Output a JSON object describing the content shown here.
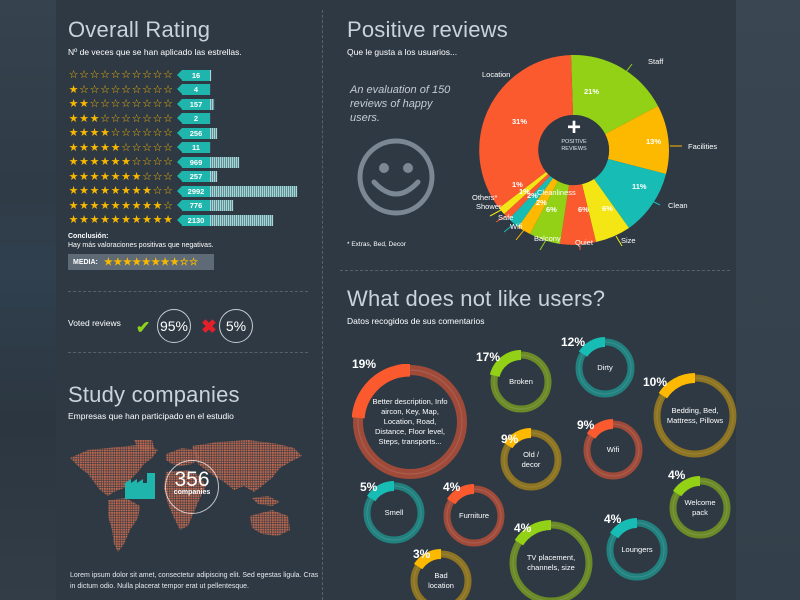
{
  "overall_rating": {
    "title": "Overall Rating",
    "subtitle": "Nº de veces que se han aplicado las estrellas.",
    "rows": [
      {
        "stars": 0,
        "count": "16",
        "bar": 2
      },
      {
        "stars": 1,
        "count": "4",
        "bar": 0
      },
      {
        "stars": 2,
        "count": "157",
        "bar": 5
      },
      {
        "stars": 3,
        "count": "2",
        "bar": 0
      },
      {
        "stars": 4,
        "count": "256",
        "bar": 8
      },
      {
        "stars": 5,
        "count": "11",
        "bar": 1
      },
      {
        "stars": 6,
        "count": "969",
        "bar": 30
      },
      {
        "stars": 7,
        "count": "257",
        "bar": 8
      },
      {
        "stars": 8,
        "count": "2992",
        "bar": 88
      },
      {
        "stars": 9,
        "count": "776",
        "bar": 24
      },
      {
        "stars": 10,
        "count": "2130",
        "bar": 64
      }
    ],
    "max_stars": 10,
    "conclusion_title": "Conclusión:",
    "conclusion_text": "Hay más valoraciones positivas que negativas.",
    "media_label": "MEDIA:",
    "media_stars": 8
  },
  "voted_reviews": {
    "label": "Voted reviews",
    "positive": "95%",
    "negative": "5%",
    "positive_color": "#8cd11b",
    "negative_color": "#e3202a"
  },
  "study_companies": {
    "title": "Study companies",
    "subtitle": "Empresas que han participado en el estudio",
    "count": "356",
    "count_label": "companies",
    "lorem": "Lorem ipsum dolor sit amet, consectetur adipiscing elit. Sed egestas ligula. Cras in dictum odio. Nulla placerat tempor erat ut pellentesque."
  },
  "positive_reviews": {
    "title": "Positive reviews",
    "subtitle": "Que le gusta a los usuarios...",
    "evaluation": "An evaluation of 150 reviews of happy users.",
    "footnote": "* Extras, Bed, Decor",
    "center_symbol": "+",
    "center_label_1": "POSITIVE",
    "center_label_2": "REVIEWS"
  },
  "negative": {
    "title": "What does not like users?",
    "subtitle": "Datos recogidos de sus comentarios",
    "items": [
      {
        "pct": "19%",
        "label": "Better description, Info aircon, Key, Map, Location, Road, Distance, Floor level, Steps, transports...",
        "color": "#fa5a2e",
        "track": "#a04b3a"
      },
      {
        "pct": "17%",
        "label": "Broken",
        "color": "#93d116",
        "track": "#6b8a27"
      },
      {
        "pct": "12%",
        "label": "Dirty",
        "color": "#17bdb4",
        "track": "#21817f"
      },
      {
        "pct": "10%",
        "label": "Bedding, Bed, Mattress, Pillows",
        "color": "#fdb900",
        "track": "#8d7422"
      },
      {
        "pct": "9%",
        "label": "Old / decor",
        "color": "#fdb900",
        "track": "#8d7422"
      },
      {
        "pct": "9%",
        "label": "Wifi",
        "color": "#fa5a2e",
        "track": "#a04b3a"
      },
      {
        "pct": "5%",
        "label": "Smell",
        "color": "#17bdb4",
        "track": "#21817f"
      },
      {
        "pct": "4%",
        "label": "Furniture",
        "color": "#fa5a2e",
        "track": "#a04b3a"
      },
      {
        "pct": "4%",
        "label": "TV placement, channels, size",
        "color": "#93d116",
        "track": "#6b8a27"
      },
      {
        "pct": "4%",
        "label": "Loungers",
        "color": "#17bdb4",
        "track": "#21817f"
      },
      {
        "pct": "4%",
        "label": "Welcome pack",
        "color": "#93d116",
        "track": "#6b8a27"
      },
      {
        "pct": "3%",
        "label": "Bad location",
        "color": "#fdb900",
        "track": "#8d7422"
      }
    ]
  },
  "chart_data": [
    {
      "type": "bar",
      "title": "Overall Rating",
      "categories": [
        "0 stars",
        "1 star",
        "2 stars",
        "3 stars",
        "4 stars",
        "5 stars",
        "6 stars",
        "7 stars",
        "8 stars",
        "9 stars",
        "10 stars"
      ],
      "values": [
        16,
        4,
        157,
        2,
        256,
        11,
        969,
        257,
        2992,
        776,
        2130
      ],
      "orientation": "horizontal"
    },
    {
      "type": "pie",
      "title": "Positive reviews",
      "categories": [
        "Location",
        "Staff",
        "Facilities",
        "Clean",
        "Size",
        "Quiet",
        "Balcony",
        "Wifi",
        "Safe",
        "Shower",
        "Others*",
        "Cleanliness"
      ],
      "values": [
        31,
        21,
        13,
        11,
        6,
        6,
        6,
        2,
        2,
        1,
        1,
        0
      ],
      "colors": [
        "#fa5a2e",
        "#93d116",
        "#fdb900",
        "#17bdb4",
        "#f4e615",
        "#fa5a2e",
        "#93d116",
        "#fdb900",
        "#17bdb4",
        "#fa5a2e",
        "#f4e615",
        "#17bdb4"
      ],
      "donut": true
    },
    {
      "type": "bar",
      "title": "What does not like users?",
      "categories": [
        "Better description...",
        "Broken",
        "Dirty",
        "Bedding, Bed, Mattress, Pillows",
        "Old / decor",
        "Wifi",
        "Smell",
        "Furniture",
        "TV placement, channels, size",
        "Loungers",
        "Welcome pack",
        "Bad location"
      ],
      "values": [
        19,
        17,
        12,
        10,
        9,
        9,
        5,
        4,
        4,
        4,
        4,
        3
      ],
      "unit": "%"
    }
  ]
}
